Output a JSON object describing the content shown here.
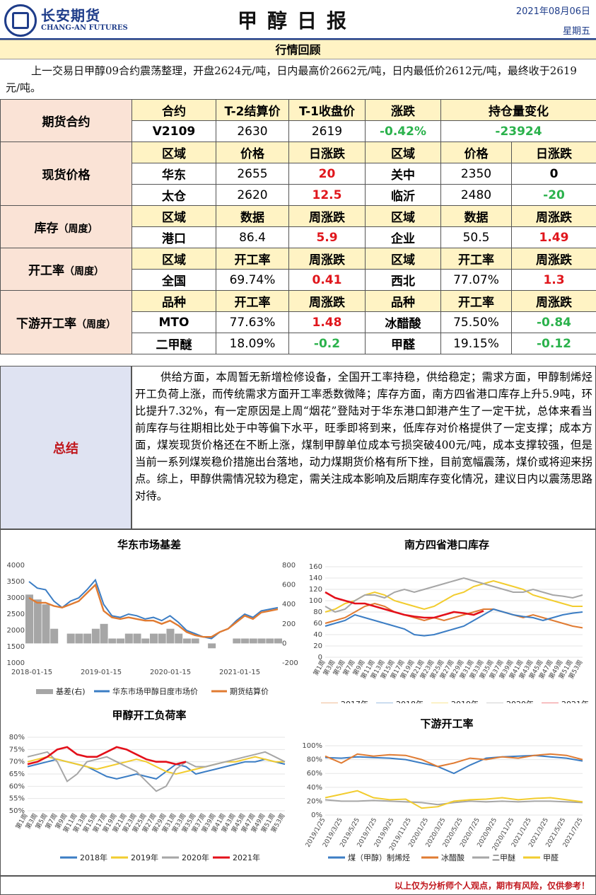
{
  "header": {
    "company_cn": "长安期货",
    "company_en": "CHANG-AN FUTURES",
    "title": "甲醇日报",
    "date": "2021年08月06日",
    "weekday": "星期五"
  },
  "review": {
    "heading": "行情回顾",
    "text": "上一交易日甲醇09合约震荡整理，开盘2624元/吨，日内最高价2662元/吨，日内最低价2612元/吨，最终收于2619元/吨。"
  },
  "futures": {
    "label": "期货合约",
    "headers": [
      "合约",
      "T-2结算价",
      "T-1收盘价",
      "涨跌",
      "持仓量变化"
    ],
    "row": [
      "V2109",
      "2630",
      "2619",
      "-0.42%",
      "-23924"
    ]
  },
  "spot": {
    "label": "现货价格",
    "headers": [
      "区域",
      "价格",
      "日涨跌",
      "区域",
      "价格",
      "日涨跌"
    ],
    "rows": [
      [
        "华东",
        "2655",
        "20",
        "关中",
        "2350",
        "0"
      ],
      [
        "太仓",
        "2620",
        "12.5",
        "临沂",
        "2480",
        "-20"
      ]
    ]
  },
  "inventory": {
    "label": "库存",
    "label_note": "（周度）",
    "headers": [
      "区域",
      "数据",
      "周涨跌",
      "区域",
      "数据",
      "周涨跌"
    ],
    "row": [
      "港口",
      "86.4",
      "5.9",
      "企业",
      "50.5",
      "1.49"
    ]
  },
  "operating": {
    "label": "开工率",
    "label_note": "（周度）",
    "headers": [
      "区域",
      "开工率",
      "周涨跌",
      "区域",
      "开工率",
      "周涨跌"
    ],
    "row": [
      "全国",
      "69.74%",
      "0.41",
      "西北",
      "77.07%",
      "1.3"
    ]
  },
  "downstream": {
    "label": "下游开工率",
    "label_note": "（周度）",
    "headers": [
      "品种",
      "开工率",
      "周涨跌",
      "品种",
      "开工率",
      "周涨跌"
    ],
    "rows": [
      [
        "MTO",
        "77.63%",
        "1.48",
        "冰醋酸",
        "75.50%",
        "-0.84"
      ],
      [
        "二甲醚",
        "18.09%",
        "-0.2",
        "甲醛",
        "19.15%",
        "-0.12"
      ]
    ]
  },
  "summary": {
    "label": "总结",
    "text": "供给方面，本周暂无新增检修设备，全国开工率持稳，供给稳定；需求方面，甲醇制烯烃开工负荷上涨，而传统需求方面开工率悉数微降；库存方面，南方四省港口库存上升5.9吨，环比提升7.32%，有一定原因是上周“烟花”登陆对于华东港口卸港产生了一定干扰，总体来看当前库存与往期相比处于中等偏下水平，旺季即将到来，低库存对价格提供了一定支撑；成本方面，煤炭现货价格还在不断上涨，煤制甲醇单位成本亏损突破400元/吨，成本支撑较强，但是当前一系列煤炭稳价措施出台落地，动力煤期货价格有所下挫，目前宽幅震荡，煤价或将迎来拐点。综上，甲醇供需情况较为稳定，需关注成本影响及后期库存变化情况，建议日内以震荡思路对待。"
  },
  "colors": {
    "red": "#e0161c",
    "green": "#2bb24c",
    "navy": "#1f3d8a",
    "y2017": "#e07b32",
    "y2018": "#3b7dc4",
    "y2019": "#f2cc2e",
    "y2020": "#a6a6a6",
    "y2021": "#e3101a"
  },
  "chart_data": [
    {
      "type": "line",
      "title": "华东市场基差",
      "x_ticks": [
        "2018-01-15",
        "2019-01-15",
        "2020-01-15",
        "2021-01-15"
      ],
      "y_left_ticks": [
        "4000",
        "3500",
        "3000",
        "2500",
        "2000",
        "1500",
        "1000"
      ],
      "y_right_ticks": [
        "800",
        "600",
        "400",
        "200",
        "0",
        "-200"
      ],
      "ylim_left": [
        1000,
        4000
      ],
      "ylim_right": [
        -200,
        800
      ],
      "legend": [
        "基差(右)",
        "华东市场甲醇日度市场价",
        "期货结算价"
      ],
      "spot_price": [
        3500,
        3300,
        3250,
        2900,
        2700,
        2900,
        3000,
        3250,
        3550,
        2800,
        2450,
        2400,
        2500,
        2450,
        2350,
        2400,
        2300,
        2450,
        2250,
        2000,
        1900,
        1800,
        1750,
        1950,
        2050,
        2300,
        2500,
        2400,
        2600,
        2650,
        2700
      ],
      "futures_price": [
        3000,
        2850,
        2850,
        2750,
        2700,
        2800,
        2900,
        3150,
        3400,
        2600,
        2400,
        2350,
        2400,
        2350,
        2300,
        2300,
        2200,
        2300,
        2150,
        1950,
        1850,
        1800,
        1800,
        1950,
        2050,
        2250,
        2450,
        2350,
        2550,
        2600,
        2650
      ],
      "basis": [
        500,
        450,
        400,
        150,
        0,
        100,
        100,
        100,
        150,
        200,
        50,
        50,
        100,
        100,
        50,
        100,
        100,
        150,
        100,
        50,
        50,
        0,
        -50,
        0,
        0,
        50,
        50,
        50,
        50,
        50,
        50
      ]
    },
    {
      "type": "line",
      "title": "南方四省港口库存",
      "y_ticks": [
        "160",
        "140",
        "120",
        "100",
        "80",
        "60",
        "40",
        "20",
        "0"
      ],
      "ylim": [
        0,
        160
      ],
      "x_ticks": [
        "第1周",
        "第3周",
        "第5周",
        "第7周",
        "第9周",
        "第11周",
        "第13周",
        "第15周",
        "第17周",
        "第19周",
        "第21周",
        "第23周",
        "第25周",
        "第27周",
        "第29周",
        "第31周",
        "第33周",
        "第35周",
        "第37周",
        "第39周",
        "第41周",
        "第43周",
        "第45周",
        "第47周",
        "第49周",
        "第51周",
        "第53周"
      ],
      "series": [
        {
          "name": "2017年",
          "values": [
            60,
            65,
            70,
            80,
            90,
            95,
            90,
            80,
            75,
            70,
            65,
            70,
            65,
            70,
            75,
            80,
            85,
            85,
            80,
            75,
            70,
            75,
            70,
            65,
            60,
            55,
            52
          ]
        },
        {
          "name": "2018年",
          "values": [
            55,
            60,
            65,
            75,
            70,
            65,
            60,
            55,
            50,
            40,
            38,
            40,
            45,
            50,
            55,
            65,
            75,
            85,
            80,
            75,
            72,
            70,
            65,
            70,
            75,
            78,
            80
          ]
        },
        {
          "name": "2019年",
          "values": [
            80,
            85,
            95,
            100,
            110,
            115,
            110,
            100,
            95,
            90,
            85,
            90,
            100,
            110,
            115,
            125,
            130,
            135,
            130,
            125,
            120,
            110,
            105,
            100,
            95,
            90,
            90
          ]
        },
        {
          "name": "2020年",
          "values": [
            90,
            80,
            85,
            100,
            110,
            110,
            105,
            115,
            120,
            115,
            120,
            125,
            130,
            135,
            140,
            135,
            130,
            125,
            120,
            115,
            115,
            120,
            115,
            110,
            108,
            105,
            110
          ]
        },
        {
          "name": "2021年",
          "values": [
            115,
            105,
            100,
            95,
            95,
            90,
            85,
            80,
            75,
            72,
            70,
            70,
            75,
            80,
            78,
            75,
            82
          ]
        }
      ]
    },
    {
      "type": "line",
      "title": "甲醇开工负荷率",
      "y_ticks": [
        "80%",
        "75%",
        "70%",
        "65%",
        "60%",
        "55%",
        "50%"
      ],
      "ylim": [
        50,
        80
      ],
      "x_ticks": [
        "第1周",
        "第3周",
        "第5周",
        "第7周",
        "第9周",
        "第11周",
        "第13周",
        "第15周",
        "第17周",
        "第19周",
        "第21周",
        "第23周",
        "第25周",
        "第27周",
        "第29周",
        "第31周",
        "第33周",
        "第35周",
        "第37周",
        "第39周",
        "第41周",
        "第43周",
        "第45周",
        "第47周",
        "第49周",
        "第51周",
        "第53周"
      ],
      "series": [
        {
          "name": "2018年",
          "values": [
            68,
            69,
            70,
            71,
            70,
            69,
            68,
            66,
            64,
            63,
            64,
            65,
            64,
            63,
            66,
            69,
            68,
            65,
            66,
            67,
            68,
            69,
            70,
            70,
            71,
            70,
            69
          ]
        },
        {
          "name": "2019年",
          "values": [
            70,
            71,
            72,
            71,
            70,
            69,
            68,
            67,
            68,
            69,
            70,
            71,
            70,
            68,
            66,
            65,
            66,
            67,
            68,
            69,
            70,
            70,
            71,
            72,
            71,
            70,
            70
          ]
        },
        {
          "name": "2020年",
          "values": [
            72,
            73,
            74,
            70,
            62,
            65,
            70,
            71,
            72,
            70,
            68,
            66,
            62,
            58,
            60,
            67,
            70,
            68,
            68,
            69,
            70,
            71,
            72,
            73,
            74,
            72,
            70
          ]
        },
        {
          "name": "2021年",
          "values": [
            69,
            70,
            72,
            75,
            76,
            73,
            72,
            72,
            74,
            76,
            75,
            73,
            71,
            70,
            70,
            69,
            70
          ]
        }
      ]
    },
    {
      "type": "line",
      "title": "下游开工率",
      "y_ticks": [
        "100%",
        "80%",
        "60%",
        "40%",
        "20%",
        "0%"
      ],
      "ylim": [
        0,
        100
      ],
      "x_ticks": [
        "2019/1/25",
        "2019/3/25",
        "2019/5/25",
        "2019/7/25",
        "2019/9/25",
        "2019/11/25",
        "2020/1/25",
        "2020/3/25",
        "2020/5/25",
        "2020/7/25",
        "2020/9/25",
        "2020/11/25",
        "2021/1/25",
        "2021/3/25",
        "2021/5/25",
        "2021/7/25"
      ],
      "series": [
        {
          "name": "煤（甲醇）制烯烃",
          "values": [
            83,
            82,
            84,
            83,
            82,
            80,
            75,
            70,
            60,
            72,
            82,
            84,
            85,
            86,
            84,
            82,
            78
          ]
        },
        {
          "name": "冰醋酸",
          "values": [
            85,
            75,
            88,
            85,
            87,
            86,
            80,
            70,
            75,
            82,
            80,
            84,
            82,
            86,
            88,
            86,
            80
          ]
        },
        {
          "name": "二甲醚",
          "values": [
            22,
            20,
            20,
            21,
            20,
            19,
            18,
            15,
            18,
            20,
            19,
            20,
            19,
            20,
            20,
            19,
            18
          ]
        },
        {
          "name": "甲醛",
          "values": [
            25,
            30,
            35,
            25,
            22,
            23,
            10,
            12,
            20,
            22,
            23,
            25,
            22,
            24,
            25,
            22,
            19
          ]
        }
      ]
    }
  ],
  "footer": "以上仅为分析师个人观点，期市有风险，仅供参考！"
}
